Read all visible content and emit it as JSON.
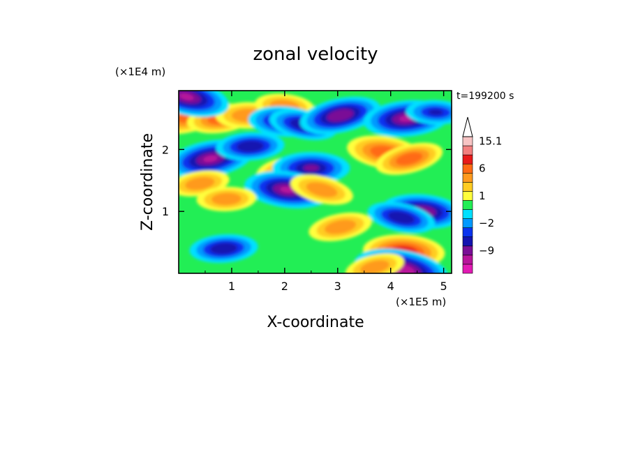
{
  "chart_data": {
    "type": "heatmap",
    "title": "zonal velocity",
    "xlabel": "X-coordinate",
    "ylabel": "Z-coordinate",
    "x_scale_label": "(×1E5 m)",
    "y_scale_label": "(×1E4 m)",
    "time_label": "t=199200 s",
    "xlim": [
      0,
      5.15
    ],
    "ylim": [
      0,
      2.95
    ],
    "x_ticks": [
      1,
      2,
      3,
      4,
      5
    ],
    "y_ticks": [
      1,
      2
    ],
    "colorbar": {
      "levels": [
        -15,
        -12,
        -9,
        -6,
        -3,
        -2,
        -1,
        0,
        1,
        2,
        3,
        6,
        9,
        12,
        15.1
      ],
      "tick_labels": [
        {
          "value": 15.1,
          "label": "15.1"
        },
        {
          "value": 6,
          "label": "6"
        },
        {
          "value": 1,
          "label": "1"
        },
        {
          "value": -2,
          "label": "−2"
        },
        {
          "value": -9,
          "label": "−9"
        }
      ],
      "colors": [
        "#e21ab4",
        "#b8149b",
        "#7a0e96",
        "#1313b0",
        "#0a33ee",
        "#0099ff",
        "#00e0ff",
        "#22ee55",
        "#ffff3c",
        "#ffcc22",
        "#ff9a1e",
        "#ff6a14",
        "#e81a1a",
        "#f27f7f",
        "#f7c4c4"
      ],
      "max_label": "15.1"
    },
    "features": [
      {
        "x": 0.25,
        "z": 2.55,
        "value": 8
      },
      {
        "x": 0.8,
        "z": 2.5,
        "value": 6
      },
      {
        "x": 1.3,
        "z": 2.55,
        "value": 5
      },
      {
        "x": 2.0,
        "z": 2.7,
        "value": 4
      },
      {
        "x": 0.15,
        "z": 2.85,
        "value": -10
      },
      {
        "x": 0.6,
        "z": 1.85,
        "value": -10
      },
      {
        "x": 1.35,
        "z": 2.05,
        "value": -6
      },
      {
        "x": 2.0,
        "z": 2.45,
        "value": -7
      },
      {
        "x": 2.35,
        "z": 2.4,
        "value": -6
      },
      {
        "x": 3.05,
        "z": 2.55,
        "value": -9
      },
      {
        "x": 4.3,
        "z": 2.5,
        "value": -10
      },
      {
        "x": 4.85,
        "z": 2.6,
        "value": -4
      },
      {
        "x": 3.9,
        "z": 1.95,
        "value": 8
      },
      {
        "x": 4.35,
        "z": 1.85,
        "value": 6
      },
      {
        "x": 2.15,
        "z": 1.65,
        "value": 7
      },
      {
        "x": 2.5,
        "z": 1.7,
        "value": -8
      },
      {
        "x": 2.05,
        "z": 1.35,
        "value": -10
      },
      {
        "x": 2.7,
        "z": 1.35,
        "value": 5
      },
      {
        "x": 0.4,
        "z": 1.45,
        "value": 4
      },
      {
        "x": 0.9,
        "z": 1.2,
        "value": 4
      },
      {
        "x": 4.6,
        "z": 1.0,
        "value": -9
      },
      {
        "x": 4.2,
        "z": 0.9,
        "value": -6
      },
      {
        "x": 3.05,
        "z": 0.75,
        "value": 5
      },
      {
        "x": 0.85,
        "z": 0.4,
        "value": -6
      },
      {
        "x": 4.25,
        "z": 0.35,
        "value": 9
      },
      {
        "x": 4.2,
        "z": 0.05,
        "value": -12
      },
      {
        "x": 3.7,
        "z": 0.1,
        "value": 4
      }
    ]
  }
}
